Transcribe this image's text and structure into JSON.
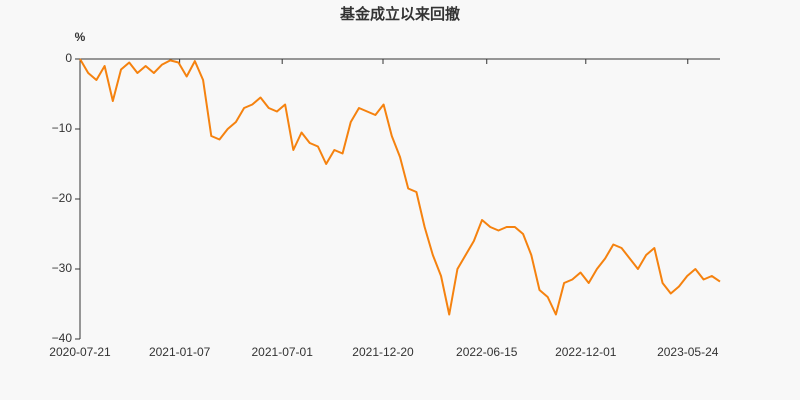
{
  "chart_data": {
    "type": "line",
    "title": "基金成立以来回撤",
    "y_unit": "%",
    "x": [
      "2020-07-21",
      "2020-08-04",
      "2020-08-18",
      "2020-09-01",
      "2020-09-15",
      "2020-09-29",
      "2020-10-13",
      "2020-10-27",
      "2020-11-10",
      "2020-11-24",
      "2020-12-08",
      "2020-12-22",
      "2021-01-05",
      "2021-01-19",
      "2021-02-02",
      "2021-02-16",
      "2021-03-02",
      "2021-03-16",
      "2021-03-30",
      "2021-04-13",
      "2021-04-27",
      "2021-05-11",
      "2021-05-25",
      "2021-06-08",
      "2021-06-22",
      "2021-07-06",
      "2021-07-20",
      "2021-08-03",
      "2021-08-17",
      "2021-08-31",
      "2021-09-14",
      "2021-09-28",
      "2021-10-12",
      "2021-10-26",
      "2021-11-09",
      "2021-11-23",
      "2021-12-07",
      "2021-12-21",
      "2022-01-04",
      "2022-01-18",
      "2022-02-01",
      "2022-02-15",
      "2022-03-01",
      "2022-03-15",
      "2022-03-29",
      "2022-04-12",
      "2022-04-26",
      "2022-05-10",
      "2022-05-24",
      "2022-06-07",
      "2022-06-21",
      "2022-07-05",
      "2022-07-19",
      "2022-08-02",
      "2022-08-16",
      "2022-08-30",
      "2022-09-13",
      "2022-09-27",
      "2022-10-11",
      "2022-10-25",
      "2022-11-08",
      "2022-11-22",
      "2022-12-06",
      "2022-12-20",
      "2023-01-03",
      "2023-01-17",
      "2023-01-31",
      "2023-02-14",
      "2023-02-28",
      "2023-03-14",
      "2023-03-28",
      "2023-04-11",
      "2023-04-25",
      "2023-05-09",
      "2023-05-23",
      "2023-06-06",
      "2023-06-20",
      "2023-07-04",
      "2023-07-18"
    ],
    "series": [
      {
        "color": "#f5820f",
        "values": [
          0,
          -2,
          -3,
          -1,
          -6,
          -1.5,
          -0.5,
          -2,
          -1,
          -2,
          -0.8,
          -0.2,
          -0.5,
          -2.5,
          -0.3,
          -3,
          -11,
          -11.5,
          -10,
          -9,
          -7,
          -6.5,
          -5.5,
          -7,
          -7.5,
          -6.5,
          -13,
          -10.5,
          -12,
          -12.5,
          -15,
          -13,
          -13.5,
          -9,
          -7,
          -7.5,
          -8,
          -6.5,
          -11,
          -14,
          -18.5,
          -19,
          -24,
          -28,
          -31,
          -36.5,
          -30,
          -28,
          -26,
          -23,
          -24,
          -24.5,
          -24,
          -24,
          -25,
          -28,
          -33,
          -34,
          -36.5,
          -32,
          -31.5,
          -30.5,
          -32,
          -30,
          -28.5,
          -26.5,
          -27,
          -28.5,
          -30,
          -28,
          -27,
          -32,
          -33.5,
          -32.5,
          -31,
          -30,
          -31.5,
          -31,
          -31.8
        ]
      }
    ],
    "xlim": [
      "2020-07-21",
      "2023-07-18"
    ],
    "xticks": [
      "2020-07-21",
      "2021-01-07",
      "2021-07-01",
      "2021-12-20",
      "2022-06-15",
      "2022-12-01",
      "2023-05-24"
    ],
    "ylim": [
      -40,
      0
    ],
    "yticks": [
      0,
      {
        "value": -10,
        "label": "−10"
      },
      {
        "value": -20,
        "label": "−20"
      },
      {
        "value": -30,
        "label": "−30"
      },
      {
        "value": -40,
        "label": "−40"
      }
    ]
  }
}
